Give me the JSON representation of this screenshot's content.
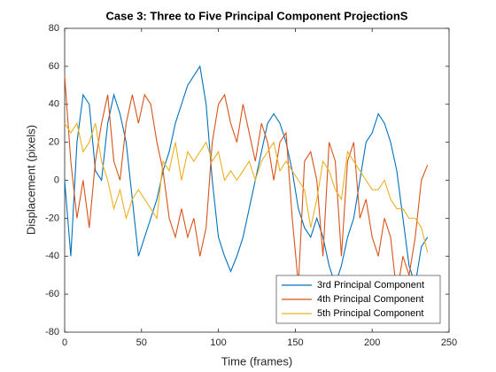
{
  "chart_data": {
    "type": "line",
    "title": "Case 3: Three to Five Principal Component ProjectionS",
    "xlabel": "Time (frames)",
    "ylabel": "Displacement (pixels)",
    "x": [
      0,
      4,
      8,
      12,
      16,
      20,
      24,
      28,
      32,
      36,
      40,
      44,
      48,
      52,
      56,
      60,
      64,
      68,
      72,
      76,
      80,
      84,
      88,
      92,
      96,
      100,
      104,
      108,
      112,
      116,
      120,
      124,
      128,
      132,
      136,
      140,
      144,
      148,
      152,
      156,
      160,
      164,
      168,
      172,
      176,
      180,
      184,
      188,
      192,
      196,
      200,
      204,
      208,
      212,
      216,
      220,
      224,
      228,
      232,
      236
    ],
    "series": [
      {
        "name": "3rd Principal Component",
        "color": "#0072BD",
        "values": [
          0,
          -40,
          20,
          45,
          40,
          5,
          0,
          30,
          45,
          35,
          20,
          -10,
          -40,
          -30,
          -20,
          -10,
          5,
          15,
          30,
          40,
          50,
          55,
          60,
          40,
          0,
          -30,
          -40,
          -48,
          -40,
          -30,
          -15,
          0,
          15,
          30,
          35,
          30,
          20,
          5,
          -15,
          -25,
          -30,
          -20,
          -30,
          -45,
          -55,
          -45,
          -30,
          -20,
          0,
          20,
          25,
          35,
          30,
          20,
          5,
          -20,
          -45,
          -55,
          -35,
          -30
        ]
      },
      {
        "name": "4th Principal Component",
        "color": "#D95319",
        "values": [
          55,
          10,
          -20,
          0,
          -25,
          10,
          30,
          45,
          10,
          0,
          30,
          45,
          30,
          45,
          40,
          20,
          5,
          -20,
          -30,
          -15,
          -30,
          -20,
          -40,
          -25,
          20,
          40,
          45,
          30,
          20,
          40,
          25,
          10,
          30,
          20,
          0,
          20,
          25,
          -20,
          -55,
          10,
          15,
          0,
          -40,
          20,
          10,
          -40,
          10,
          20,
          -20,
          -10,
          -30,
          -40,
          -20,
          -30,
          -60,
          -40,
          -50,
          -30,
          0,
          8
        ]
      },
      {
        "name": "5th Principal Component",
        "color": "#EDB120",
        "values": [
          30,
          25,
          30,
          15,
          20,
          30,
          10,
          0,
          -15,
          -5,
          -20,
          -10,
          -5,
          -10,
          -15,
          -20,
          10,
          5,
          20,
          0,
          15,
          10,
          15,
          20,
          10,
          15,
          0,
          5,
          0,
          5,
          10,
          0,
          10,
          15,
          20,
          5,
          10,
          5,
          0,
          -5,
          -25,
          -10,
          10,
          5,
          -5,
          -10,
          15,
          10,
          5,
          0,
          -5,
          -5,
          0,
          -10,
          -15,
          -15,
          -20,
          -20,
          -25,
          -38
        ]
      }
    ],
    "xlim": [
      0,
      250
    ],
    "xticks": [
      0,
      50,
      100,
      150,
      200,
      250
    ],
    "ylim": [
      -80,
      80
    ],
    "yticks": [
      -80,
      -60,
      -40,
      -20,
      0,
      20,
      40,
      60,
      80
    ],
    "legend": "lower right"
  }
}
